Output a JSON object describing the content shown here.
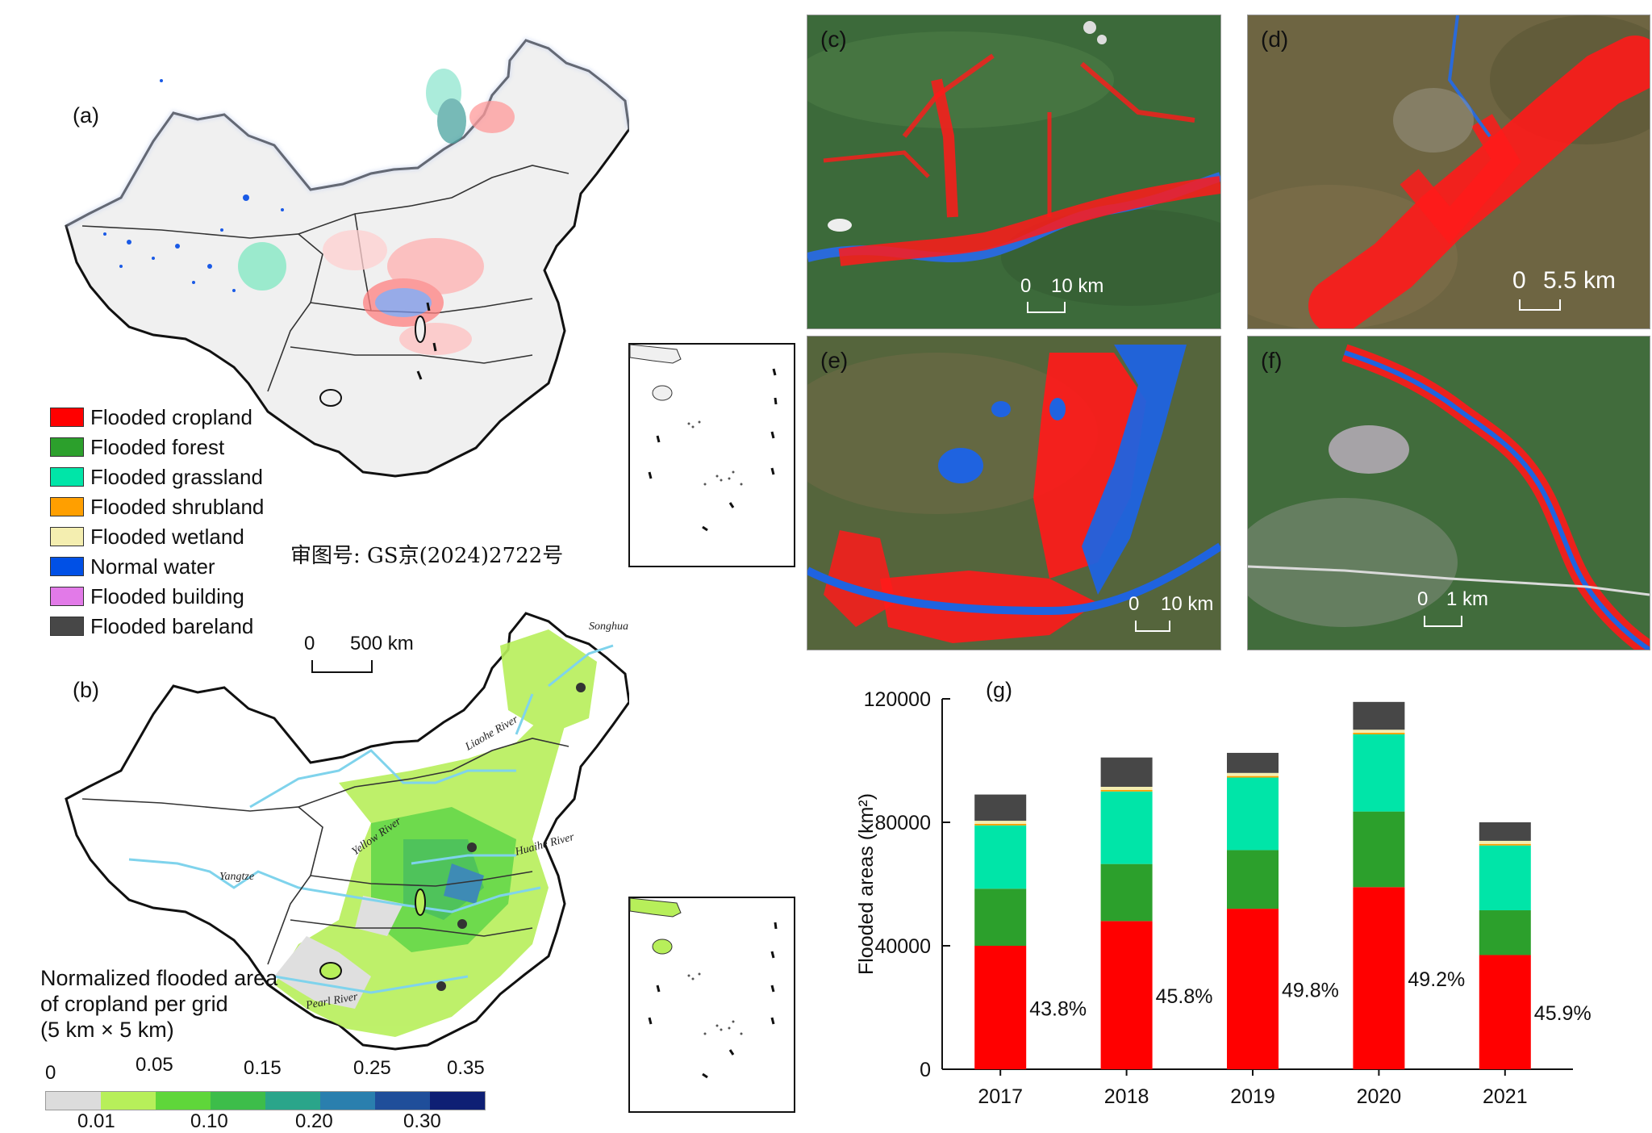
{
  "panel_a": {
    "label": "(a)",
    "legend": [
      {
        "label": "Flooded cropland",
        "color": "#ff0000"
      },
      {
        "label": "Flooded forest",
        "color": "#2ca02c"
      },
      {
        "label": "Flooded grassland",
        "color": "#00e5a8"
      },
      {
        "label": "Flooded shrubland",
        "color": "#ff9f00"
      },
      {
        "label": "Flooded wetland",
        "color": "#f4eeb0"
      },
      {
        "label": "Normal water",
        "color": "#0050e6"
      },
      {
        "label": "Flooded building",
        "color": "#e27ae8"
      },
      {
        "label": "Flooded bareland",
        "color": "#474747"
      }
    ],
    "review_number": "审图号: GS京(2024)2722号"
  },
  "panel_b": {
    "label": "(b)",
    "scale_zero": "0",
    "scale_label": "500 km",
    "rivers": [
      "Songhua River",
      "Liaohe River",
      "Yellow River",
      "Huaihe River",
      "Yangtze",
      "Pearl River"
    ],
    "colorbar_title": [
      "Normalized flooded area",
      "of cropland  per grid",
      "(5 km × 5 km)"
    ],
    "colorbar_colors": [
      "#dcdcdc",
      "#b7ef5a",
      "#5fd63a",
      "#3dbd4a",
      "#2aa58a",
      "#2a7fae",
      "#1f4e9a",
      "#0e1f74"
    ],
    "colorbar_ticks_top": [
      "0",
      "0.05",
      "0.15",
      "0.25",
      "0.35"
    ],
    "colorbar_ticks_bottom": [
      "0.01",
      "0.10",
      "0.20",
      "0.30"
    ]
  },
  "photos": [
    {
      "label": "(c)",
      "scale_zero": "0",
      "scale_label": "10 km"
    },
    {
      "label": "(d)",
      "scale_zero": "0",
      "scale_label": "5.5 km"
    },
    {
      "label": "(e)",
      "scale_zero": "0",
      "scale_label": "10 km"
    },
    {
      "label": "(f)",
      "scale_zero": "0",
      "scale_label": "1 km"
    }
  ],
  "chart_data": {
    "type": "bar",
    "stacked": true,
    "panel_label": "(g)",
    "categories": [
      "2017",
      "2018",
      "2019",
      "2020",
      "2021"
    ],
    "ylabel": "Flooded areas (km²)",
    "ylim": [
      0,
      120000
    ],
    "yticks": [
      "0",
      "40000",
      "80000",
      "120000"
    ],
    "series": [
      {
        "color": "#ff0000",
        "values": [
          40000,
          48000,
          52000,
          59000,
          37000
        ]
      },
      {
        "color": "#2ca02c",
        "values": [
          18500,
          18500,
          19000,
          24500,
          14500
        ]
      },
      {
        "color": "#00e5a8",
        "values": [
          20500,
          23500,
          23500,
          25000,
          21000
        ]
      },
      {
        "color": "#ff9f00",
        "values": [
          500,
          500,
          500,
          500,
          500
        ]
      },
      {
        "color": "#f4eeb0",
        "values": [
          1000,
          1000,
          1000,
          1000,
          1000
        ]
      },
      {
        "color": "#474747",
        "values": [
          8500,
          9500,
          6500,
          9000,
          6000
        ]
      }
    ],
    "cropland_share_labels": [
      "43.8%",
      "45.8%",
      "49.8%",
      "49.2%",
      "45.9%"
    ]
  }
}
